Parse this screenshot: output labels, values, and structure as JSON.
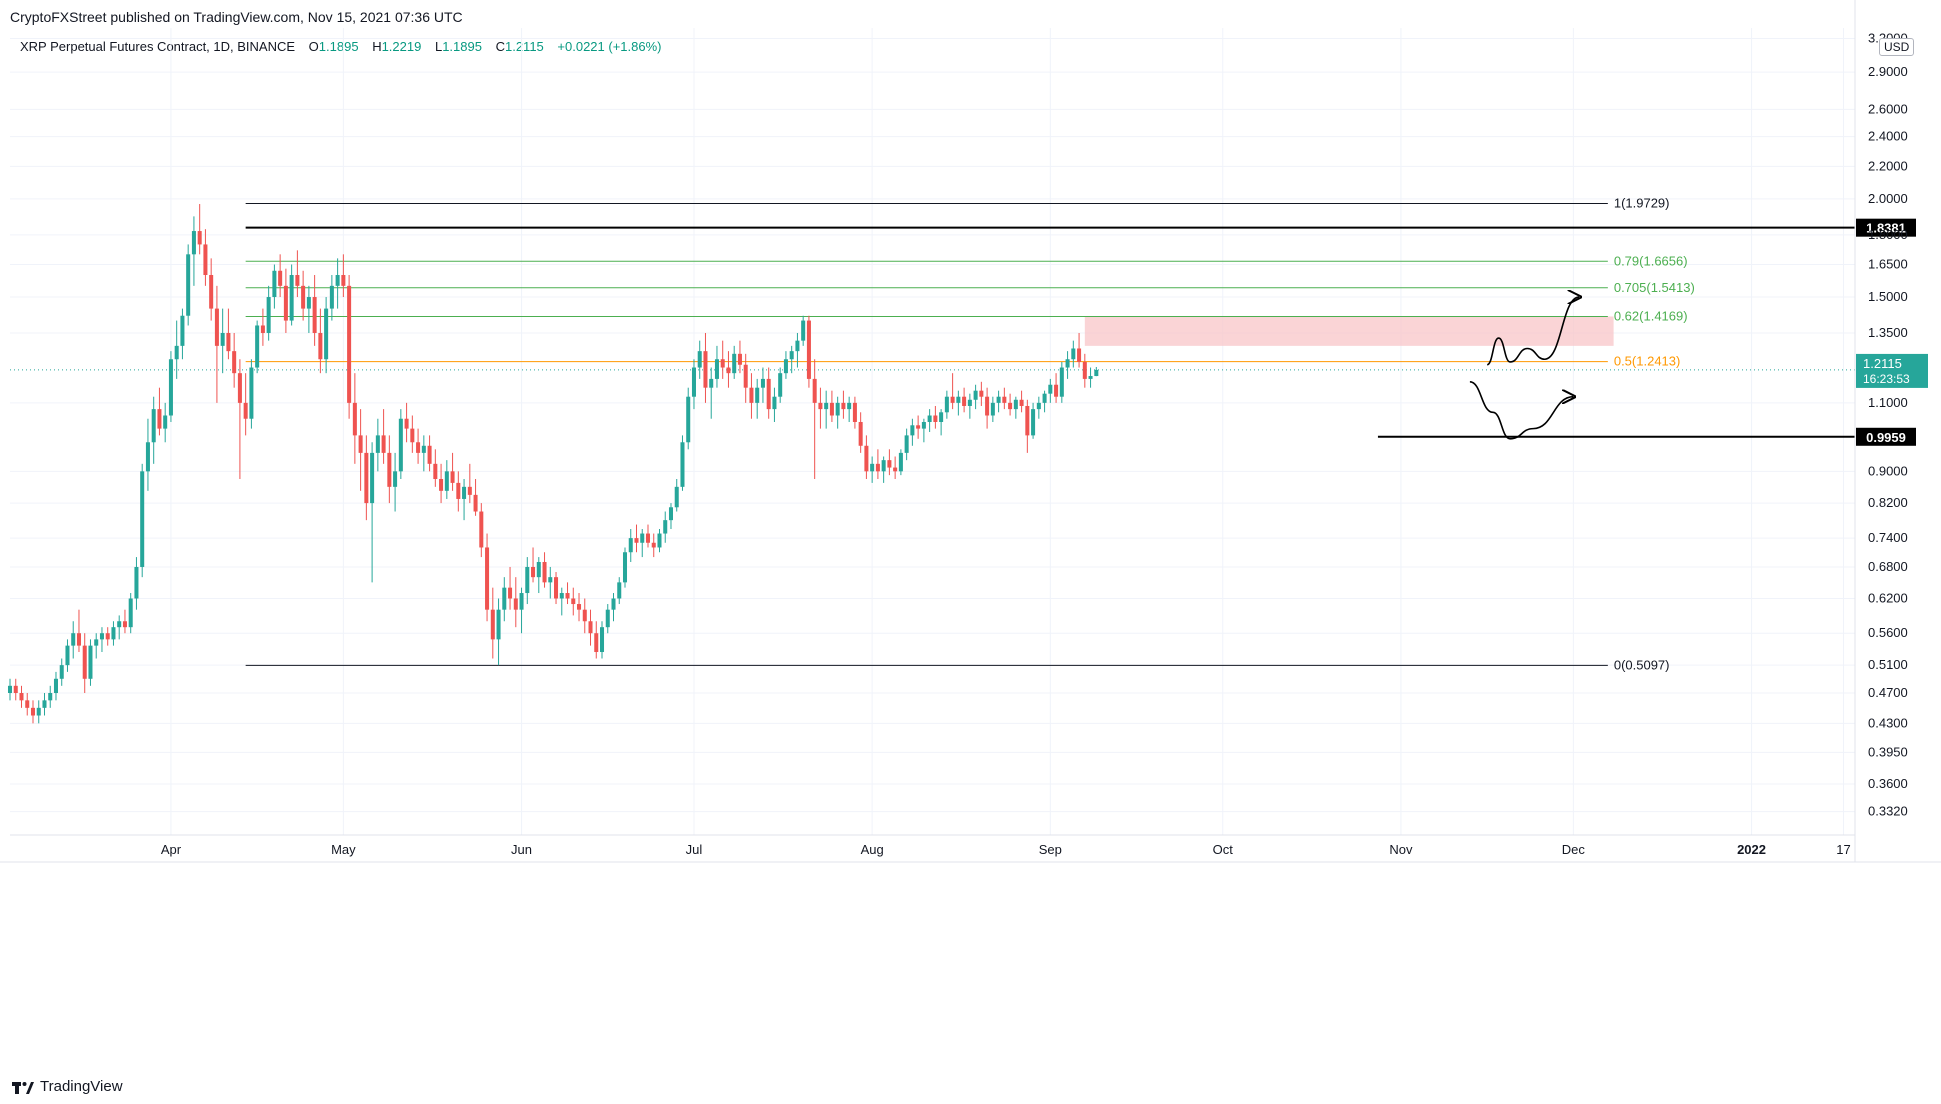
{
  "header": {
    "publisher": "CryptoFXStreet published on TradingView.com, Nov 15, 2021 07:36 UTC",
    "symbol": "XRP Perpetual Futures Contract, 1D, BINANCE",
    "o_label": "O",
    "o_value": "1.1895",
    "h_label": "H",
    "h_value": "1.2219",
    "l_label": "L",
    "l_value": "1.1895",
    "c_label": "C",
    "c_value": "1.2115",
    "change": "+0.0221 (+1.86%)",
    "currency": "USD"
  },
  "footer": {
    "brand": "TradingView",
    "logo": "tradingview-logo-icon"
  },
  "colors": {
    "up": "#26a69a",
    "down": "#ef5350",
    "fib_green": "#4caf50",
    "fib_orange": "#ff9800",
    "zone": "#f8c6c8",
    "axis_text": "#131722",
    "grid": "#f0f3fa"
  },
  "chart_data": {
    "type": "candlestick",
    "scale": "log",
    "ylim": [
      0.31,
      3.3
    ],
    "y_ticks": [
      "3.2000",
      "2.9000",
      "2.6000",
      "2.4000",
      "2.2000",
      "2.0000",
      "1.8000",
      "1.6500",
      "1.5000",
      "1.3500",
      "1.1000",
      "0.9000",
      "0.8200",
      "0.7400",
      "0.6800",
      "0.6200",
      "0.5600",
      "0.5100",
      "0.4700",
      "0.4300",
      "0.3950",
      "0.3600",
      "0.3320"
    ],
    "x_ticks": [
      "Apr",
      "May",
      "Jun",
      "Jul",
      "Aug",
      "Sep",
      "Oct",
      "Nov",
      "Dec",
      "2022",
      "17"
    ],
    "x_start": "2021-03-04",
    "x_end": "2022-01-19",
    "fib_levels": [
      {
        "label": "1(1.9729)",
        "value": 1.9729,
        "color": "#131722"
      },
      {
        "label": "0.79(1.6656)",
        "value": 1.6656,
        "color": "#4caf50"
      },
      {
        "label": "0.705(1.5413)",
        "value": 1.5413,
        "color": "#4caf50"
      },
      {
        "label": "0.62(1.4169)",
        "value": 1.4169,
        "color": "#4caf50"
      },
      {
        "label": "0.5(1.2413)",
        "value": 1.2413,
        "color": "#ff9800"
      },
      {
        "label": "0(0.5097)",
        "value": 0.5097,
        "color": "#131722"
      }
    ],
    "fib_start": "2021-04-14",
    "fib_end": "2021-12-07",
    "horizontal_levels": [
      {
        "label": "1.8381",
        "value": 1.8381,
        "start": "2021-04-14"
      },
      {
        "label": "0.9959",
        "value": 0.9959,
        "start": "2021-10-28"
      }
    ],
    "supply_zone": {
      "from": 1.3,
      "to": 1.4169,
      "start": "2021-09-07",
      "end": "2021-12-08"
    },
    "last_price": {
      "label": "1.2115",
      "countdown": "16:23:53",
      "value": 1.2115
    },
    "projections": [
      {
        "points": [
          [
            "2021-11-16",
            1.23
          ],
          [
            "2021-11-18",
            1.33
          ],
          [
            "2021-11-20",
            1.24
          ],
          [
            "2021-11-23",
            1.29
          ],
          [
            "2021-11-26",
            1.25
          ],
          [
            "2021-12-02",
            1.5
          ]
        ]
      },
      {
        "points": [
          [
            "2021-11-13",
            1.17
          ],
          [
            "2021-11-17",
            1.07
          ],
          [
            "2021-11-20",
            0.99
          ],
          [
            "2021-11-24",
            1.02
          ],
          [
            "2021-12-01",
            1.12
          ]
        ]
      }
    ],
    "ohlc_anchor": "2021-03-04",
    "ohlc": [
      [
        0.47,
        0.49,
        0.46,
        0.48
      ],
      [
        0.48,
        0.49,
        0.46,
        0.47
      ],
      [
        0.47,
        0.48,
        0.45,
        0.46
      ],
      [
        0.46,
        0.47,
        0.44,
        0.45
      ],
      [
        0.45,
        0.46,
        0.43,
        0.44
      ],
      [
        0.44,
        0.46,
        0.43,
        0.45
      ],
      [
        0.45,
        0.47,
        0.44,
        0.46
      ],
      [
        0.46,
        0.48,
        0.45,
        0.47
      ],
      [
        0.47,
        0.5,
        0.46,
        0.49
      ],
      [
        0.49,
        0.52,
        0.48,
        0.51
      ],
      [
        0.51,
        0.55,
        0.5,
        0.54
      ],
      [
        0.54,
        0.58,
        0.52,
        0.56
      ],
      [
        0.56,
        0.6,
        0.53,
        0.54
      ],
      [
        0.54,
        0.56,
        0.47,
        0.49
      ],
      [
        0.49,
        0.55,
        0.48,
        0.54
      ],
      [
        0.54,
        0.56,
        0.52,
        0.55
      ],
      [
        0.55,
        0.57,
        0.53,
        0.56
      ],
      [
        0.56,
        0.57,
        0.54,
        0.55
      ],
      [
        0.55,
        0.58,
        0.54,
        0.57
      ],
      [
        0.57,
        0.59,
        0.55,
        0.58
      ],
      [
        0.58,
        0.6,
        0.56,
        0.57
      ],
      [
        0.57,
        0.63,
        0.56,
        0.62
      ],
      [
        0.62,
        0.7,
        0.6,
        0.68
      ],
      [
        0.68,
        0.92,
        0.66,
        0.9
      ],
      [
        0.9,
        1.05,
        0.85,
        0.98
      ],
      [
        0.98,
        1.12,
        0.92,
        1.08
      ],
      [
        1.08,
        1.15,
        1.0,
        1.02
      ],
      [
        1.02,
        1.1,
        0.98,
        1.06
      ],
      [
        1.06,
        1.28,
        1.04,
        1.25
      ],
      [
        1.25,
        1.4,
        1.18,
        1.3
      ],
      [
        1.3,
        1.45,
        1.25,
        1.42
      ],
      [
        1.42,
        1.75,
        1.38,
        1.7
      ],
      [
        1.7,
        1.9,
        1.55,
        1.82
      ],
      [
        1.82,
        1.97,
        1.7,
        1.75
      ],
      [
        1.75,
        1.83,
        1.55,
        1.6
      ],
      [
        1.6,
        1.68,
        1.4,
        1.45
      ],
      [
        1.45,
        1.55,
        1.1,
        1.3
      ],
      [
        1.3,
        1.45,
        1.2,
        1.35
      ],
      [
        1.35,
        1.45,
        1.25,
        1.28
      ],
      [
        1.28,
        1.35,
        1.15,
        1.2
      ],
      [
        1.2,
        1.25,
        0.88,
        1.1
      ],
      [
        1.1,
        1.2,
        1.0,
        1.05
      ],
      [
        1.05,
        1.25,
        1.02,
        1.22
      ],
      [
        1.22,
        1.4,
        1.2,
        1.38
      ],
      [
        1.38,
        1.45,
        1.3,
        1.35
      ],
      [
        1.35,
        1.55,
        1.32,
        1.5
      ],
      [
        1.5,
        1.65,
        1.45,
        1.62
      ],
      [
        1.62,
        1.7,
        1.5,
        1.55
      ],
      [
        1.55,
        1.63,
        1.35,
        1.4
      ],
      [
        1.4,
        1.65,
        1.38,
        1.6
      ],
      [
        1.6,
        1.72,
        1.5,
        1.55
      ],
      [
        1.55,
        1.62,
        1.4,
        1.45
      ],
      [
        1.45,
        1.55,
        1.35,
        1.5
      ],
      [
        1.5,
        1.6,
        1.3,
        1.35
      ],
      [
        1.35,
        1.45,
        1.2,
        1.25
      ],
      [
        1.25,
        1.5,
        1.2,
        1.45
      ],
      [
        1.45,
        1.6,
        1.4,
        1.55
      ],
      [
        1.55,
        1.68,
        1.45,
        1.6
      ],
      [
        1.6,
        1.7,
        1.5,
        1.55
      ],
      [
        1.55,
        1.6,
        1.05,
        1.1
      ],
      [
        1.1,
        1.2,
        0.92,
        1.0
      ],
      [
        1.0,
        1.08,
        0.85,
        0.95
      ],
      [
        0.95,
        1.0,
        0.78,
        0.82
      ],
      [
        0.82,
        0.98,
        0.65,
        0.95
      ],
      [
        0.95,
        1.05,
        0.9,
        1.0
      ],
      [
        1.0,
        1.08,
        0.92,
        0.95
      ],
      [
        0.95,
        1.0,
        0.82,
        0.86
      ],
      [
        0.86,
        0.95,
        0.8,
        0.9
      ],
      [
        0.9,
        1.08,
        0.88,
        1.05
      ],
      [
        1.05,
        1.1,
        0.98,
        1.02
      ],
      [
        1.02,
        1.06,
        0.95,
        0.98
      ],
      [
        0.98,
        1.02,
        0.92,
        0.95
      ],
      [
        0.95,
        1.0,
        0.9,
        0.97
      ],
      [
        0.97,
        1.0,
        0.9,
        0.92
      ],
      [
        0.92,
        0.96,
        0.86,
        0.88
      ],
      [
        0.88,
        0.92,
        0.82,
        0.85
      ],
      [
        0.85,
        0.93,
        0.83,
        0.9
      ],
      [
        0.9,
        0.95,
        0.85,
        0.87
      ],
      [
        0.87,
        0.9,
        0.8,
        0.83
      ],
      [
        0.83,
        0.88,
        0.78,
        0.86
      ],
      [
        0.86,
        0.92,
        0.82,
        0.84
      ],
      [
        0.84,
        0.88,
        0.79,
        0.8
      ],
      [
        0.8,
        0.82,
        0.7,
        0.72
      ],
      [
        0.72,
        0.75,
        0.58,
        0.6
      ],
      [
        0.6,
        0.64,
        0.52,
        0.55
      ],
      [
        0.55,
        0.62,
        0.51,
        0.6
      ],
      [
        0.6,
        0.66,
        0.58,
        0.64
      ],
      [
        0.64,
        0.68,
        0.6,
        0.62
      ],
      [
        0.62,
        0.66,
        0.57,
        0.6
      ],
      [
        0.6,
        0.64,
        0.56,
        0.63
      ],
      [
        0.63,
        0.7,
        0.61,
        0.68
      ],
      [
        0.68,
        0.72,
        0.65,
        0.66
      ],
      [
        0.66,
        0.7,
        0.63,
        0.69
      ],
      [
        0.69,
        0.71,
        0.64,
        0.65
      ],
      [
        0.65,
        0.68,
        0.62,
        0.66
      ],
      [
        0.66,
        0.67,
        0.61,
        0.62
      ],
      [
        0.62,
        0.64,
        0.59,
        0.63
      ],
      [
        0.63,
        0.65,
        0.61,
        0.62
      ],
      [
        0.62,
        0.64,
        0.59,
        0.61
      ],
      [
        0.61,
        0.63,
        0.58,
        0.6
      ],
      [
        0.6,
        0.62,
        0.56,
        0.58
      ],
      [
        0.58,
        0.6,
        0.54,
        0.56
      ],
      [
        0.56,
        0.58,
        0.52,
        0.53
      ],
      [
        0.53,
        0.58,
        0.52,
        0.57
      ],
      [
        0.57,
        0.61,
        0.56,
        0.6
      ],
      [
        0.6,
        0.63,
        0.58,
        0.62
      ],
      [
        0.62,
        0.66,
        0.61,
        0.65
      ],
      [
        0.65,
        0.72,
        0.64,
        0.71
      ],
      [
        0.71,
        0.76,
        0.69,
        0.74
      ],
      [
        0.74,
        0.77,
        0.71,
        0.73
      ],
      [
        0.73,
        0.76,
        0.7,
        0.75
      ],
      [
        0.75,
        0.77,
        0.72,
        0.73
      ],
      [
        0.73,
        0.75,
        0.7,
        0.72
      ],
      [
        0.72,
        0.76,
        0.71,
        0.75
      ],
      [
        0.75,
        0.8,
        0.73,
        0.78
      ],
      [
        0.78,
        0.82,
        0.76,
        0.81
      ],
      [
        0.81,
        0.88,
        0.8,
        0.86
      ],
      [
        0.86,
        1.0,
        0.85,
        0.98
      ],
      [
        0.98,
        1.15,
        0.96,
        1.12
      ],
      [
        1.12,
        1.25,
        1.08,
        1.22
      ],
      [
        1.22,
        1.32,
        1.18,
        1.28
      ],
      [
        1.28,
        1.35,
        1.1,
        1.15
      ],
      [
        1.15,
        1.22,
        1.05,
        1.18
      ],
      [
        1.18,
        1.3,
        1.15,
        1.25
      ],
      [
        1.25,
        1.32,
        1.18,
        1.22
      ],
      [
        1.22,
        1.28,
        1.15,
        1.2
      ],
      [
        1.2,
        1.3,
        1.18,
        1.27
      ],
      [
        1.27,
        1.32,
        1.2,
        1.23
      ],
      [
        1.23,
        1.27,
        1.1,
        1.15
      ],
      [
        1.15,
        1.2,
        1.05,
        1.1
      ],
      [
        1.1,
        1.18,
        1.05,
        1.15
      ],
      [
        1.15,
        1.22,
        1.1,
        1.18
      ],
      [
        1.18,
        1.22,
        1.05,
        1.08
      ],
      [
        1.08,
        1.15,
        1.04,
        1.12
      ],
      [
        1.12,
        1.22,
        1.1,
        1.2
      ],
      [
        1.2,
        1.28,
        1.18,
        1.25
      ],
      [
        1.25,
        1.3,
        1.2,
        1.28
      ],
      [
        1.28,
        1.35,
        1.22,
        1.32
      ],
      [
        1.32,
        1.42,
        1.3,
        1.4
      ],
      [
        1.4,
        1.42,
        1.15,
        1.18
      ],
      [
        1.18,
        1.25,
        0.88,
        1.1
      ],
      [
        1.1,
        1.15,
        1.02,
        1.08
      ],
      [
        1.08,
        1.14,
        1.02,
        1.1
      ],
      [
        1.1,
        1.14,
        1.04,
        1.06
      ],
      [
        1.06,
        1.12,
        1.02,
        1.1
      ],
      [
        1.1,
        1.14,
        1.05,
        1.08
      ],
      [
        1.08,
        1.12,
        1.04,
        1.1
      ],
      [
        1.1,
        1.12,
        1.02,
        1.04
      ],
      [
        1.04,
        1.07,
        0.95,
        0.97
      ],
      [
        0.97,
        1.0,
        0.88,
        0.9
      ],
      [
        0.9,
        0.94,
        0.87,
        0.92
      ],
      [
        0.92,
        0.96,
        0.88,
        0.9
      ],
      [
        0.9,
        0.94,
        0.87,
        0.93
      ],
      [
        0.93,
        0.96,
        0.89,
        0.91
      ],
      [
        0.91,
        0.94,
        0.88,
        0.9
      ],
      [
        0.9,
        0.96,
        0.89,
        0.95
      ],
      [
        0.95,
        1.02,
        0.93,
        1.0
      ],
      [
        1.0,
        1.05,
        0.97,
        1.03
      ],
      [
        1.03,
        1.06,
        0.99,
        1.02
      ],
      [
        1.02,
        1.05,
        0.98,
        1.04
      ],
      [
        1.04,
        1.08,
        1.01,
        1.06
      ],
      [
        1.06,
        1.09,
        1.02,
        1.04
      ],
      [
        1.04,
        1.08,
        1.0,
        1.07
      ],
      [
        1.07,
        1.14,
        1.05,
        1.12
      ],
      [
        1.12,
        1.2,
        1.08,
        1.1
      ],
      [
        1.1,
        1.14,
        1.06,
        1.12
      ],
      [
        1.12,
        1.15,
        1.07,
        1.09
      ],
      [
        1.09,
        1.13,
        1.05,
        1.11
      ],
      [
        1.11,
        1.16,
        1.08,
        1.14
      ],
      [
        1.14,
        1.17,
        1.09,
        1.12
      ],
      [
        1.12,
        1.15,
        1.02,
        1.06
      ],
      [
        1.06,
        1.12,
        1.04,
        1.1
      ],
      [
        1.1,
        1.14,
        1.07,
        1.12
      ],
      [
        1.12,
        1.15,
        1.08,
        1.1
      ],
      [
        1.1,
        1.13,
        1.06,
        1.08
      ],
      [
        1.08,
        1.12,
        1.05,
        1.11
      ],
      [
        1.11,
        1.14,
        1.07,
        1.09
      ],
      [
        1.09,
        1.11,
        0.95,
        1.0
      ],
      [
        1.0,
        1.1,
        0.99,
        1.08
      ],
      [
        1.08,
        1.12,
        1.05,
        1.1
      ],
      [
        1.1,
        1.14,
        1.07,
        1.13
      ],
      [
        1.13,
        1.18,
        1.1,
        1.16
      ],
      [
        1.16,
        1.2,
        1.1,
        1.12
      ],
      [
        1.12,
        1.24,
        1.1,
        1.22
      ],
      [
        1.22,
        1.28,
        1.18,
        1.25
      ],
      [
        1.25,
        1.32,
        1.22,
        1.29
      ],
      [
        1.29,
        1.35,
        1.22,
        1.24
      ],
      [
        1.24,
        1.27,
        1.15,
        1.18
      ],
      [
        1.18,
        1.22,
        1.15,
        1.19
      ],
      [
        1.19,
        1.2219,
        1.1895,
        1.2115
      ]
    ]
  }
}
